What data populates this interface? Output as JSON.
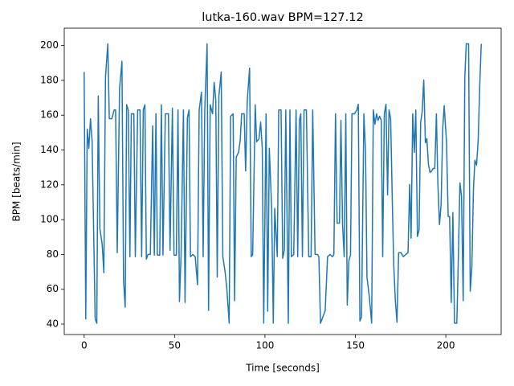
{
  "chart_data": {
    "type": "line",
    "title": "lutka-160.wav BPM=127.12",
    "xlabel": "Time [seconds]",
    "ylabel": "BPM [beats/min]",
    "color": "#1f77b4",
    "xlim": [
      -11,
      230.6
    ],
    "ylim": [
      34,
      210
    ],
    "xticks": [
      0,
      50,
      100,
      150,
      200
    ],
    "yticks": [
      40,
      60,
      80,
      100,
      120,
      140,
      160,
      180,
      200
    ],
    "x": [
      0,
      0.9,
      1.7,
      2.6,
      3.5,
      4.4,
      6.1,
      7,
      7.8,
      8.7,
      10,
      10.9,
      11.8,
      13.1,
      13.9,
      15.3,
      16.6,
      17.4,
      18.3,
      19.6,
      20.9,
      21.8,
      22.7,
      23.5,
      24.4,
      25.3,
      26.1,
      27.5,
      28.3,
      29.6,
      30.9,
      31.8,
      32.7,
      33.6,
      34.4,
      35.3,
      36.6,
      37.9,
      38.8,
      39.7,
      40.5,
      41.8,
      42.7,
      43.6,
      44.9,
      46.6,
      47.5,
      48.8,
      49.7,
      51,
      51.9,
      52.7,
      53.6,
      54.9,
      55.8,
      57.1,
      58,
      58.8,
      60.1,
      61.4,
      62.7,
      63.6,
      64.9,
      65.8,
      66.7,
      68,
      68.8,
      69.7,
      71,
      71.9,
      72.8,
      73.6,
      74.5,
      75.8,
      76.7,
      78,
      78.9,
      80.2,
      81,
      82.4,
      83.2,
      84.1,
      85.4,
      86.3,
      87.1,
      88.5,
      89.3,
      90.2,
      91.5,
      92.4,
      93.2,
      94.6,
      95.4,
      96.7,
      97.6,
      98.5,
      99.3,
      100.6,
      101.5,
      102.4,
      103.7,
      104.6,
      105.4,
      106.8,
      107.6,
      108.9,
      109.8,
      110.7,
      111.5,
      112.9,
      113.8,
      114.6,
      115.9,
      117.2,
      118.1,
      119,
      119.8,
      120.7,
      121.6,
      122.9,
      124.2,
      125.5,
      126.4,
      127.7,
      129,
      129.8,
      130.7,
      132,
      133.3,
      134.6,
      136,
      137.3,
      138.1,
      139,
      139.9,
      141.2,
      142,
      142.9,
      143.8,
      144.7,
      145.5,
      146.4,
      147.3,
      148.1,
      149.5,
      150.8,
      151.6,
      152.5,
      153.4,
      154.7,
      155.6,
      156.4,
      157.7,
      159,
      159.9,
      160.8,
      161.7,
      162.5,
      163.4,
      164.3,
      165.1,
      166,
      166.9,
      167.8,
      168.6,
      169.5,
      170.4,
      171.2,
      172.1,
      173,
      173.9,
      175.2,
      176.5,
      177.8,
      179.1,
      180,
      180.8,
      181.7,
      182.6,
      183.4,
      184.3,
      185.2,
      186.1,
      186.9,
      187.8,
      188.7,
      189.5,
      190.4,
      191.3,
      192.2,
      193,
      193.9,
      194.8,
      195.6,
      196.5,
      197.4,
      198.3,
      199.1,
      200.4,
      201.3,
      202.1,
      203,
      203.9,
      204.8,
      206.1,
      207,
      207.8,
      208.7,
      209.6,
      210.5,
      211.3,
      212.6,
      213.5,
      214.4,
      215.3,
      216.1,
      217,
      217.9,
      218.7,
      219.6
    ],
    "values": [
      184.8,
      43,
      152,
      141,
      158,
      145,
      43,
      40.5,
      171,
      95,
      85.6,
      69.5,
      182,
      201,
      158,
      158,
      163,
      163,
      81,
      175.5,
      191,
      65,
      49.7,
      166,
      163,
      78.7,
      160.8,
      160.8,
      78.7,
      163,
      163,
      78.7,
      163,
      166,
      77.3,
      80,
      80,
      153.9,
      79.6,
      160.8,
      79.6,
      79.6,
      166,
      79.6,
      160.8,
      160.8,
      82.4,
      164,
      79.6,
      79.6,
      163,
      52.9,
      79.6,
      163,
      52.4,
      158.5,
      163,
      78.7,
      80,
      78.7,
      62.6,
      163,
      173.2,
      78.7,
      163,
      201,
      47.8,
      166,
      160.8,
      178.8,
      168.6,
      67,
      171,
      184.8,
      78.7,
      69.5,
      60.3,
      40.5,
      159.4,
      160.8,
      53.4,
      135.9,
      138.7,
      145.6,
      160.8,
      160.8,
      128,
      168.6,
      187,
      78.7,
      80,
      166,
      144.7,
      146.5,
      156,
      141,
      40.5,
      160.8,
      47.4,
      141,
      106.4,
      40.5,
      106.4,
      78.7,
      163,
      163,
      77.8,
      82.4,
      163,
      40.4,
      163,
      78.7,
      80,
      163,
      78.7,
      157,
      160.8,
      78.7,
      163,
      163,
      78.7,
      78.7,
      163,
      80,
      80,
      78.7,
      40.5,
      44.1,
      47.8,
      78.7,
      80,
      78.7,
      80,
      160.8,
      98,
      98,
      157,
      97.2,
      78.7,
      160.8,
      51,
      76.4,
      79.6,
      160.8,
      160.8,
      163,
      166.3,
      41.8,
      44.1,
      160.8,
      138.7,
      67,
      55.7,
      40.5,
      163,
      154.8,
      160.8,
      157,
      159.4,
      157,
      78.7,
      160.8,
      166.3,
      114.2,
      163,
      158,
      111,
      74.1,
      53.4,
      41,
      81,
      81,
      78.7,
      80,
      81,
      120.2,
      89.3,
      160.8,
      138.7,
      163,
      90.3,
      94,
      156,
      161.7,
      180.2,
      144.2,
      146.5,
      131.7,
      127.1,
      128,
      129.4,
      129.4,
      160.8,
      121.1,
      97.2,
      108.7,
      152.5,
      165.4,
      144.2,
      101.8,
      101.8,
      52.4,
      104.1,
      40.5,
      40.5,
      81,
      121.1,
      113.3,
      53.4,
      181.5,
      201,
      201,
      58.9,
      72.7,
      117.9,
      134.1,
      131.3,
      145.6,
      175.5,
      201
    ]
  }
}
